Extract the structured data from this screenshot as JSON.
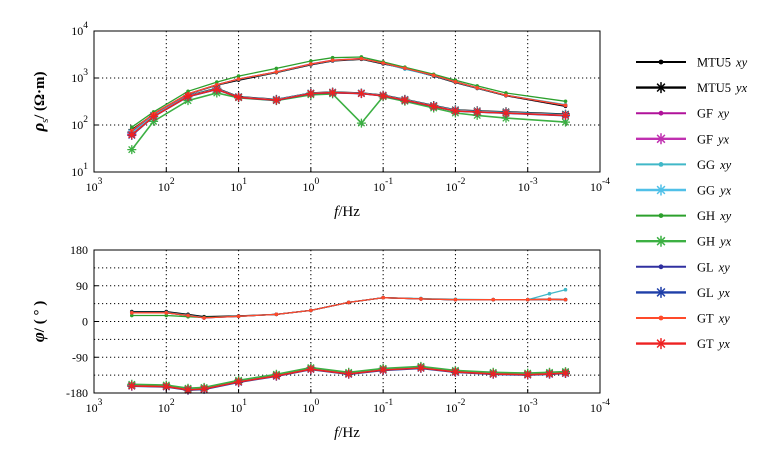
{
  "chart_data": [
    {
      "type": "line",
      "panel": "apparent-resistivity",
      "xlabel_italic": "f",
      "xlabel_rest": "/Hz",
      "ylabel_sym": "ρ",
      "ylabel_sub": "s",
      "ylabel_unit": "/ (Ω·m)",
      "xscale": "log",
      "xlim": [
        1000,
        0.0001
      ],
      "x_reversed": true,
      "yscale": "log",
      "ylim": [
        10,
        10000
      ],
      "grid": "dotted",
      "x_ticks": [
        {
          "base": "10",
          "exp": "3",
          "v": 1000
        },
        {
          "base": "10",
          "exp": "2",
          "v": 100
        },
        {
          "base": "10",
          "exp": "1",
          "v": 10
        },
        {
          "base": "10",
          "exp": "0",
          "v": 1
        },
        {
          "base": "10",
          "exp": "-1",
          "v": 0.1
        },
        {
          "base": "10",
          "exp": "-2",
          "v": 0.01
        },
        {
          "base": "10",
          "exp": "-3",
          "v": 0.001
        },
        {
          "base": "10",
          "exp": "-4",
          "v": 0.0001
        }
      ],
      "y_ticks": [
        {
          "base": "10",
          "exp": "1",
          "v": 10
        },
        {
          "base": "10",
          "exp": "2",
          "v": 100
        },
        {
          "base": "10",
          "exp": "3",
          "v": 1000
        },
        {
          "base": "10",
          "exp": "4",
          "v": 10000
        }
      ],
      "x": [
        300,
        150,
        50,
        20,
        10,
        3,
        1,
        0.5,
        0.2,
        0.1,
        0.05,
        0.02,
        0.01,
        0.005,
        0.002,
        0.0003
      ],
      "series": [
        {
          "name": "MTU5 xy",
          "marker": "dot",
          "color": "#000000",
          "values": [
            80,
            170,
            450,
            700,
            900,
            1300,
            1900,
            2300,
            2500,
            2000,
            1600,
            1100,
            800,
            600,
            420,
            250
          ]
        },
        {
          "name": "MTU5 yx",
          "marker": "star",
          "color": "#000000",
          "values": [
            70,
            160,
            420,
            600,
            400,
            350,
            480,
            500,
            480,
            430,
            350,
            260,
            210,
            200,
            190,
            170
          ]
        },
        {
          "name": "GF xy",
          "marker": "dot",
          "color": "#b0129a",
          "values": [
            75,
            175,
            460,
            720,
            950,
            1350,
            2000,
            2400,
            2600,
            2100,
            1650,
            1150,
            830,
            620,
            430,
            260
          ]
        },
        {
          "name": "GF yx",
          "marker": "star",
          "color": "#c030b0",
          "values": [
            65,
            155,
            410,
            580,
            390,
            340,
            470,
            490,
            470,
            420,
            340,
            250,
            200,
            190,
            180,
            160
          ]
        },
        {
          "name": "GG xy",
          "marker": "dot",
          "color": "#40b8c8",
          "values": [
            72,
            168,
            450,
            710,
            940,
            1330,
            1950,
            2350,
            2550,
            2050,
            1550,
            1120,
            820,
            610,
            430,
            270
          ]
        },
        {
          "name": "GG yx",
          "marker": "star",
          "color": "#50c0e8",
          "values": [
            68,
            158,
            415,
            590,
            395,
            345,
            475,
            495,
            475,
            425,
            345,
            255,
            205,
            195,
            185,
            165
          ]
        },
        {
          "name": "GH xy",
          "marker": "dot",
          "color": "#2ca02c",
          "values": [
            90,
            190,
            520,
            820,
            1100,
            1600,
            2300,
            2700,
            2800,
            2200,
            1700,
            1200,
            900,
            680,
            480,
            320
          ]
        },
        {
          "name": "GH yx",
          "marker": "star",
          "color": "#3cb043",
          "values": [
            30,
            120,
            330,
            480,
            380,
            330,
            440,
            460,
            110,
            400,
            320,
            230,
            180,
            160,
            140,
            115
          ]
        },
        {
          "name": "GL xy",
          "marker": "dot",
          "color": "#3030a0",
          "values": [
            74,
            172,
            455,
            715,
            945,
            1340,
            1960,
            2360,
            2560,
            2060,
            1600,
            1130,
            825,
            615,
            428,
            262
          ]
        },
        {
          "name": "GL yx",
          "marker": "star",
          "color": "#1f3fa8",
          "values": [
            60,
            150,
            400,
            570,
            385,
            335,
            465,
            485,
            465,
            415,
            335,
            248,
            198,
            188,
            178,
            158
          ]
        },
        {
          "name": "GT xy",
          "marker": "dot",
          "color": "#ff4a2a",
          "values": [
            76,
            174,
            458,
            718,
            948,
            1345,
            1980,
            2380,
            2580,
            2080,
            1620,
            1140,
            828,
            618,
            429,
            262
          ]
        },
        {
          "name": "GT yx",
          "marker": "star",
          "color": "#ee2222",
          "values": [
            62,
            152,
            405,
            575,
            388,
            338,
            468,
            488,
            468,
            418,
            338,
            250,
            200,
            190,
            180,
            160
          ]
        }
      ]
    },
    {
      "type": "line",
      "panel": "phase",
      "xlabel_italic": "f",
      "xlabel_rest": "/Hz",
      "ylabel_sym": "φ",
      "ylabel_unit": "/ ( ° )",
      "xscale": "log",
      "xlim": [
        1000,
        0.0001
      ],
      "x_reversed": true,
      "ylim": [
        -180,
        180
      ],
      "grid": "dotted",
      "x_ticks": [
        {
          "base": "10",
          "exp": "3",
          "v": 1000
        },
        {
          "base": "10",
          "exp": "2",
          "v": 100
        },
        {
          "base": "10",
          "exp": "1",
          "v": 10
        },
        {
          "base": "10",
          "exp": "0",
          "v": 1
        },
        {
          "base": "10",
          "exp": "-1",
          "v": 0.1
        },
        {
          "base": "10",
          "exp": "-2",
          "v": 0.01
        },
        {
          "base": "10",
          "exp": "-3",
          "v": 0.001
        },
        {
          "base": "10",
          "exp": "-4",
          "v": 0.0001
        }
      ],
      "y_ticks": [
        {
          "label": "180",
          "v": 180
        },
        {
          "label": "90",
          "v": 90
        },
        {
          "label": "0",
          "v": 0
        },
        {
          "label": "-90",
          "v": -90
        },
        {
          "label": "-180",
          "v": -180
        }
      ],
      "x": [
        300,
        100,
        50,
        30,
        10,
        3,
        1,
        0.3,
        0.1,
        0.03,
        0.01,
        0.003,
        0.001,
        0.0005,
        0.0003
      ],
      "series": [
        {
          "name": "MTU5 xy",
          "marker": "dot",
          "color": "#000000",
          "values": [
            25,
            25,
            18,
            12,
            14,
            18,
            28,
            48,
            60,
            57,
            55,
            55,
            55,
            56,
            55
          ]
        },
        {
          "name": "MTU5 yx",
          "marker": "star",
          "color": "#000000",
          "values": [
            -160,
            -162,
            -170,
            -168,
            -150,
            -135,
            -118,
            -130,
            -120,
            -115,
            -125,
            -130,
            -132,
            -130,
            -128
          ]
        },
        {
          "name": "GF xy",
          "marker": "dot",
          "color": "#b0129a",
          "values": [
            22,
            22,
            15,
            9,
            13,
            18,
            28,
            48,
            60,
            57,
            55,
            55,
            55,
            56,
            55
          ]
        },
        {
          "name": "GF yx",
          "marker": "star",
          "color": "#c030b0",
          "values": [
            -162,
            -164,
            -172,
            -170,
            -152,
            -137,
            -120,
            -132,
            -122,
            -117,
            -127,
            -132,
            -134,
            -132,
            -130
          ]
        },
        {
          "name": "GG xy",
          "marker": "dot",
          "color": "#40b8c8",
          "values": [
            23,
            23,
            16,
            10,
            13,
            18,
            28,
            48,
            60,
            58,
            56,
            55,
            55,
            70,
            80
          ]
        },
        {
          "name": "GG yx",
          "marker": "star",
          "color": "#50c0e8",
          "values": [
            -161,
            -163,
            -171,
            -169,
            -151,
            -136,
            -119,
            -131,
            -121,
            -116,
            -126,
            -131,
            -133,
            -131,
            -129
          ]
        },
        {
          "name": "GH xy",
          "marker": "dot",
          "color": "#2ca02c",
          "values": [
            15,
            15,
            12,
            10,
            13,
            18,
            28,
            48,
            60,
            57,
            55,
            55,
            55,
            56,
            55
          ]
        },
        {
          "name": "GH yx",
          "marker": "star",
          "color": "#3cb043",
          "values": [
            -158,
            -160,
            -168,
            -166,
            -148,
            -133,
            -116,
            -128,
            -118,
            -113,
            -123,
            -128,
            -130,
            -128,
            -126
          ]
        },
        {
          "name": "GL xy",
          "marker": "dot",
          "color": "#3030a0",
          "values": [
            22,
            22,
            15,
            9,
            13,
            18,
            28,
            48,
            60,
            57,
            55,
            55,
            55,
            56,
            55
          ]
        },
        {
          "name": "GL yx",
          "marker": "star",
          "color": "#1f3fa8",
          "values": [
            -163,
            -165,
            -173,
            -171,
            -153,
            -138,
            -121,
            -133,
            -123,
            -118,
            -128,
            -133,
            -135,
            -133,
            -131
          ]
        },
        {
          "name": "GT xy",
          "marker": "dot",
          "color": "#ff4a2a",
          "values": [
            22,
            22,
            15,
            9,
            13,
            18,
            28,
            48,
            60,
            57,
            55,
            55,
            55,
            56,
            55
          ]
        },
        {
          "name": "GT yx",
          "marker": "star",
          "color": "#ee2222",
          "values": [
            -162,
            -164,
            -172,
            -170,
            -152,
            -137,
            -120,
            -132,
            -122,
            -117,
            -127,
            -132,
            -134,
            -132,
            -130
          ]
        }
      ]
    }
  ],
  "legend": [
    {
      "name_station": "MTU5",
      "name_comp": "xy",
      "marker": "dot",
      "color": "#000000"
    },
    {
      "name_station": "MTU5",
      "name_comp": "yx",
      "marker": "star",
      "color": "#000000"
    },
    {
      "name_station": "GF",
      "name_comp": "xy",
      "marker": "dot",
      "color": "#b0129a"
    },
    {
      "name_station": "GF",
      "name_comp": "yx",
      "marker": "star",
      "color": "#c030b0"
    },
    {
      "name_station": "GG",
      "name_comp": "xy",
      "marker": "dot",
      "color": "#40b8c8"
    },
    {
      "name_station": "GG",
      "name_comp": "yx",
      "marker": "star",
      "color": "#50c0e8"
    },
    {
      "name_station": "GH",
      "name_comp": "xy",
      "marker": "dot",
      "color": "#2ca02c"
    },
    {
      "name_station": "GH",
      "name_comp": "yx",
      "marker": "star",
      "color": "#3cb043"
    },
    {
      "name_station": "GL",
      "name_comp": "xy",
      "marker": "dot",
      "color": "#3030a0"
    },
    {
      "name_station": "GL",
      "name_comp": "yx",
      "marker": "star",
      "color": "#1f3fa8"
    },
    {
      "name_station": "GT",
      "name_comp": "xy",
      "marker": "dot",
      "color": "#ff4a2a"
    },
    {
      "name_station": "GT",
      "name_comp": "yx",
      "marker": "star",
      "color": "#ee2222"
    }
  ]
}
